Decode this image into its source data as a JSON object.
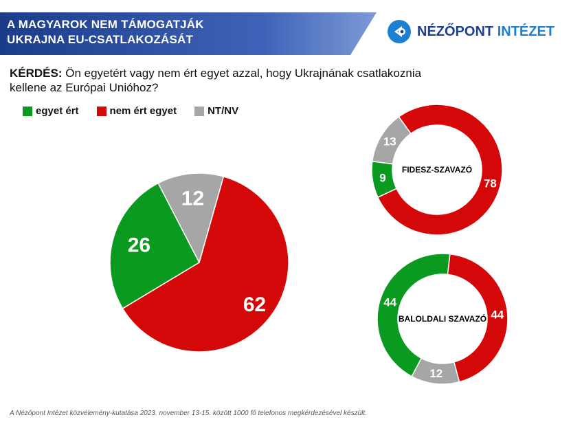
{
  "header": {
    "title_line1": "A MAGYAROK NEM TÁMOGATJÁK",
    "title_line2": "UKRAJNA EU-CSATLAKOZÁSÁT",
    "logo_main": "NÉZŐPONT",
    "logo_accent": "INTÉZET"
  },
  "question": {
    "label": "KÉRDÉS:",
    "text": "Ön egyetért vagy nem ért egyet azzal, hogy Ukrajnának csatlakoznia kellene az Európai Unióhoz?"
  },
  "legend": [
    {
      "label": "egyet ért",
      "color": "#0a9a1f"
    },
    {
      "label": "nem ért egyet",
      "color": "#d40808"
    },
    {
      "label": "NT/NV",
      "color": "#a6a6a6"
    }
  ],
  "footnote": "A Nézőpont Intézet közvélemény-kutatása 2023. november 13-15. között 1000 fő telefonos megkérdezésével készült.",
  "colors": {
    "agree": "#0a9a1f",
    "disagree": "#d40808",
    "dk": "#a6a6a6",
    "header_blue": "#3f63b8"
  },
  "chart_data": [
    {
      "type": "pie",
      "categories": [
        "egyet ért",
        "nem ért egyet",
        "NT/NV"
      ],
      "values": [
        26,
        62,
        12
      ],
      "title": ""
    },
    {
      "type": "donut",
      "title": "FIDESZ-SZAVAZÓ",
      "categories": [
        "egyet ért",
        "nem ért egyet",
        "NT/NV"
      ],
      "values": [
        9,
        78,
        13
      ]
    },
    {
      "type": "donut",
      "title": "BALOLDALI SZAVAZÓ",
      "categories": [
        "egyet ért",
        "nem ért egyet",
        "NT/NV"
      ],
      "values": [
        44,
        44,
        12
      ]
    }
  ]
}
